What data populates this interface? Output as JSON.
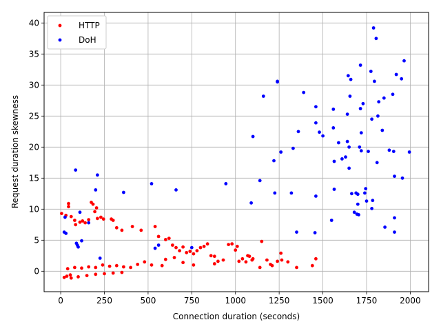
{
  "chart_data": {
    "type": "scatter",
    "xlabel": "Connection duration (seconds)",
    "ylabel": "Request duration skewness",
    "xlim": [
      -95,
      2105
    ],
    "ylim": [
      -3.3,
      41.7
    ],
    "x_ticks": [
      0,
      250,
      500,
      750,
      1000,
      1250,
      1500,
      1750,
      2000
    ],
    "y_ticks": [
      0,
      5,
      10,
      15,
      20,
      25,
      30,
      35,
      40
    ],
    "grid": true,
    "legend_position": "top-left",
    "series": [
      {
        "name": "HTTP",
        "color": "#ff0000",
        "points": [
          [
            5,
            9.3
          ],
          [
            30,
            9.0
          ],
          [
            45,
            10.9
          ],
          [
            45,
            10.4
          ],
          [
            60,
            8.8
          ],
          [
            80,
            8.2
          ],
          [
            85,
            7.5
          ],
          [
            110,
            7.9
          ],
          [
            125,
            8.1
          ],
          [
            140,
            7.8
          ],
          [
            160,
            8.3
          ],
          [
            175,
            11.1
          ],
          [
            185,
            10.8
          ],
          [
            195,
            9.6
          ],
          [
            205,
            10.2
          ],
          [
            210,
            8.5
          ],
          [
            230,
            8.7
          ],
          [
            245,
            8.4
          ],
          [
            290,
            8.4
          ],
          [
            300,
            8.2
          ],
          [
            320,
            7.0
          ],
          [
            350,
            6.6
          ],
          [
            410,
            7.2
          ],
          [
            460,
            6.6
          ],
          [
            540,
            7.2
          ],
          [
            560,
            5.6
          ],
          [
            600,
            5.1
          ],
          [
            620,
            5.3
          ],
          [
            640,
            4.2
          ],
          [
            660,
            3.8
          ],
          [
            680,
            3.3
          ],
          [
            700,
            3.9
          ],
          [
            720,
            3.0
          ],
          [
            740,
            3.2
          ],
          [
            760,
            2.8
          ],
          [
            780,
            3.3
          ],
          [
            800,
            3.8
          ],
          [
            820,
            4.0
          ],
          [
            840,
            4.4
          ],
          [
            860,
            2.5
          ],
          [
            880,
            2.4
          ],
          [
            900,
            1.6
          ],
          [
            930,
            1.8
          ],
          [
            960,
            4.3
          ],
          [
            980,
            4.4
          ],
          [
            1000,
            3.4
          ],
          [
            1010,
            4.0
          ],
          [
            1020,
            1.6
          ],
          [
            1040,
            2.0
          ],
          [
            1060,
            1.5
          ],
          [
            1070,
            2.5
          ],
          [
            1080,
            2.4
          ],
          [
            1095,
            1.8
          ],
          [
            1100,
            2.0
          ],
          [
            1140,
            0.6
          ],
          [
            1150,
            4.8
          ],
          [
            1180,
            1.8
          ],
          [
            1200,
            1.1
          ],
          [
            1210,
            0.9
          ],
          [
            1260,
            2.9
          ],
          [
            1265,
            1.8
          ],
          [
            1350,
            0.6
          ],
          [
            1440,
            0.9
          ],
          [
            1460,
            2.0
          ],
          [
            1300,
            1.5
          ],
          [
            1240,
            1.6
          ],
          [
            880,
            1.2
          ],
          [
            760,
            1.0
          ],
          [
            700,
            1.4
          ],
          [
            650,
            2.2
          ],
          [
            600,
            1.9
          ],
          [
            580,
            0.9
          ],
          [
            520,
            1.0
          ],
          [
            480,
            1.5
          ],
          [
            440,
            1.1
          ],
          [
            400,
            0.6
          ],
          [
            360,
            0.7
          ],
          [
            320,
            0.9
          ],
          [
            280,
            0.8
          ],
          [
            240,
            1.0
          ],
          [
            200,
            0.6
          ],
          [
            160,
            0.7
          ],
          [
            120,
            0.5
          ],
          [
            80,
            0.6
          ],
          [
            40,
            0.4
          ],
          [
            20,
            -1.0
          ],
          [
            35,
            -0.8
          ],
          [
            55,
            -0.6
          ],
          [
            60,
            -1.1
          ],
          [
            100,
            -0.9
          ],
          [
            150,
            -0.7
          ],
          [
            200,
            -0.5
          ],
          [
            250,
            -0.4
          ],
          [
            300,
            -0.3
          ],
          [
            350,
            -0.2
          ]
        ]
      },
      {
        "name": "DoH",
        "color": "#0000ff",
        "points": [
          [
            20,
            6.3
          ],
          [
            30,
            6.1
          ],
          [
            25,
            8.7
          ],
          [
            85,
            16.3
          ],
          [
            90,
            4.5
          ],
          [
            95,
            4.2
          ],
          [
            100,
            3.9
          ],
          [
            110,
            9.5
          ],
          [
            120,
            4.9
          ],
          [
            160,
            7.8
          ],
          [
            200,
            13.1
          ],
          [
            210,
            15.5
          ],
          [
            225,
            2.1
          ],
          [
            360,
            12.7
          ],
          [
            520,
            14.1
          ],
          [
            540,
            3.7
          ],
          [
            560,
            4.2
          ],
          [
            660,
            13.1
          ],
          [
            750,
            3.8
          ],
          [
            945,
            14.1
          ],
          [
            1090,
            11.0
          ],
          [
            1100,
            21.7
          ],
          [
            1140,
            14.6
          ],
          [
            1160,
            28.2
          ],
          [
            1220,
            17.8
          ],
          [
            1225,
            12.6
          ],
          [
            1240,
            30.5
          ],
          [
            1240,
            30.6
          ],
          [
            1260,
            19.2
          ],
          [
            1320,
            12.6
          ],
          [
            1330,
            19.8
          ],
          [
            1350,
            6.3
          ],
          [
            1360,
            22.5
          ],
          [
            1390,
            28.8
          ],
          [
            1455,
            6.2
          ],
          [
            1460,
            26.5
          ],
          [
            1460,
            23.9
          ],
          [
            1460,
            12.1
          ],
          [
            1480,
            22.4
          ],
          [
            1500,
            21.8
          ],
          [
            1550,
            8.2
          ],
          [
            1560,
            26.1
          ],
          [
            1560,
            23.1
          ],
          [
            1565,
            17.7
          ],
          [
            1565,
            13.2
          ],
          [
            1590,
            20.7
          ],
          [
            1610,
            18.1
          ],
          [
            1630,
            18.4
          ],
          [
            1640,
            25.3
          ],
          [
            1640,
            20.9
          ],
          [
            1645,
            31.5
          ],
          [
            1650,
            20.0
          ],
          [
            1650,
            16.6
          ],
          [
            1655,
            28.2
          ],
          [
            1660,
            30.9
          ],
          [
            1665,
            12.5
          ],
          [
            1680,
            9.5
          ],
          [
            1690,
            12.6
          ],
          [
            1695,
            9.2
          ],
          [
            1700,
            12.4
          ],
          [
            1700,
            10.8
          ],
          [
            1705,
            9.1
          ],
          [
            1710,
            20.0
          ],
          [
            1715,
            33.2
          ],
          [
            1715,
            26.2
          ],
          [
            1720,
            19.4
          ],
          [
            1720,
            22.3
          ],
          [
            1730,
            27.0
          ],
          [
            1740,
            12.6
          ],
          [
            1745,
            13.3
          ],
          [
            1750,
            11.3
          ],
          [
            1760,
            19.3
          ],
          [
            1775,
            32.2
          ],
          [
            1780,
            24.5
          ],
          [
            1780,
            10.1
          ],
          [
            1785,
            11.4
          ],
          [
            1790,
            39.2
          ],
          [
            1795,
            30.6
          ],
          [
            1805,
            37.5
          ],
          [
            1810,
            17.5
          ],
          [
            1815,
            25.0
          ],
          [
            1820,
            27.3
          ],
          [
            1840,
            22.7
          ],
          [
            1850,
            27.9
          ],
          [
            1855,
            7.1
          ],
          [
            1880,
            19.5
          ],
          [
            1900,
            28.5
          ],
          [
            1905,
            19.3
          ],
          [
            1910,
            15.3
          ],
          [
            1910,
            8.6
          ],
          [
            1910,
            6.3
          ],
          [
            1920,
            31.7
          ],
          [
            1950,
            31.0
          ],
          [
            1955,
            15.0
          ],
          [
            1965,
            33.9
          ],
          [
            1995,
            19.2
          ]
        ]
      }
    ]
  }
}
